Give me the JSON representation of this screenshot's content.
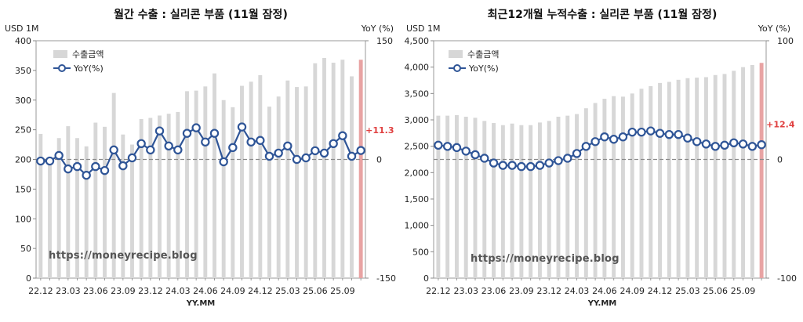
{
  "charts": [
    {
      "title": "월간 수출 : 실리콘 부품 (11월 잠정)",
      "unit_left": "USD 1M",
      "unit_right": "YoY (%)",
      "watermark": "https://moneyrecipe.blog",
      "xlabel": "YY.MM",
      "legend": [
        "수출금액",
        "YoY(%)"
      ],
      "last_label": "+11.3"
    },
    {
      "title": "최근12개월 누적수출 : 실리콘 부품 (11월 잠정)",
      "unit_left": "USD 1M",
      "unit_right": "YoY (%)",
      "watermark": "https://moneyrecipe.blog",
      "xlabel": "YY.MM",
      "legend": [
        "수출금액",
        "YoY(%)"
      ],
      "last_label": "+12.4"
    }
  ],
  "chart_data": [
    {
      "type": "bar",
      "title": "월간 수출 : 실리콘 부품 (11월 잠정)",
      "xlabel": "YY.MM",
      "ylabel": "USD 1M",
      "y2label": "YoY (%)",
      "ylim": [
        0,
        400
      ],
      "yticks": [
        0,
        50,
        100,
        150,
        200,
        250,
        300,
        350,
        400
      ],
      "y2lim": [
        -150,
        150
      ],
      "y2ticks": [
        -150,
        0,
        150
      ],
      "xtick_labels": [
        "22.12",
        "23.03",
        "23.06",
        "23.09",
        "23.12",
        "24.03",
        "24.06",
        "24.09",
        "24.12",
        "25.03",
        "25.06",
        "25.09"
      ],
      "categories": [
        "22.12",
        "23.01",
        "23.02",
        "23.03",
        "23.04",
        "23.05",
        "23.06",
        "23.07",
        "23.08",
        "23.09",
        "23.10",
        "23.11",
        "23.12",
        "24.01",
        "24.02",
        "24.03",
        "24.04",
        "24.05",
        "24.06",
        "24.07",
        "24.08",
        "24.09",
        "24.10",
        "24.11",
        "24.12",
        "25.01",
        "25.02",
        "25.03",
        "25.04",
        "25.05",
        "25.06",
        "25.07",
        "25.08",
        "25.09",
        "25.10",
        "25.11"
      ],
      "series": [
        {
          "name": "수출금액",
          "type": "bar",
          "values": [
            243,
            200,
            236,
            256,
            236,
            222,
            262,
            255,
            312,
            242,
            225,
            268,
            270,
            274,
            277,
            280,
            315,
            316,
            323,
            345,
            300,
            288,
            324,
            331,
            342,
            289,
            306,
            333,
            322,
            323,
            362,
            371,
            363,
            368,
            340,
            368
          ]
        },
        {
          "name": "YoY(%)",
          "type": "line",
          "axis": "right",
          "values": [
            -2,
            -2,
            5,
            -12,
            -9,
            -20,
            -9,
            -14,
            12,
            -8,
            2,
            20,
            12,
            36,
            17,
            12,
            33,
            40,
            22,
            33,
            -3,
            15,
            41,
            22,
            24,
            4,
            8,
            17,
            0,
            2,
            11,
            8,
            20,
            30,
            4,
            11.3
          ]
        }
      ]
    },
    {
      "type": "bar",
      "title": "최근12개월 누적수출 : 실리콘 부품 (11월 잠정)",
      "xlabel": "YY.MM",
      "ylabel": "USD 1M",
      "y2label": "YoY (%)",
      "ylim": [
        0,
        4500
      ],
      "yticks": [
        0,
        500,
        1000,
        1500,
        2000,
        2500,
        3000,
        3500,
        4000,
        4500
      ],
      "y2lim": [
        -100,
        100
      ],
      "y2ticks": [
        -100,
        0,
        100
      ],
      "xtick_labels": [
        "22.12",
        "23.03",
        "23.06",
        "23.09",
        "23.12",
        "24.03",
        "24.06",
        "24.09",
        "24.12",
        "25.03",
        "25.06",
        "25.09"
      ],
      "categories": [
        "22.12",
        "23.01",
        "23.02",
        "23.03",
        "23.04",
        "23.05",
        "23.06",
        "23.07",
        "23.08",
        "23.09",
        "23.10",
        "23.11",
        "23.12",
        "24.01",
        "24.02",
        "24.03",
        "24.04",
        "24.05",
        "24.06",
        "24.07",
        "24.08",
        "24.09",
        "24.10",
        "24.11",
        "24.12",
        "25.01",
        "25.02",
        "25.03",
        "25.04",
        "25.05",
        "25.06",
        "25.07",
        "25.08",
        "25.09",
        "25.10",
        "25.11"
      ],
      "series": [
        {
          "name": "수출금액",
          "type": "bar",
          "values": [
            3080,
            3080,
            3090,
            3060,
            3040,
            2980,
            2940,
            2900,
            2930,
            2900,
            2900,
            2950,
            2980,
            3060,
            3080,
            3110,
            3220,
            3320,
            3400,
            3450,
            3440,
            3500,
            3590,
            3640,
            3700,
            3720,
            3760,
            3790,
            3800,
            3810,
            3850,
            3870,
            3930,
            4000,
            4040,
            4080
          ]
        },
        {
          "name": "YoY(%)",
          "type": "line",
          "axis": "right",
          "values": [
            12,
            11,
            10,
            7,
            4,
            1,
            -3,
            -5,
            -5,
            -6,
            -6,
            -5,
            -3,
            -1,
            1,
            5,
            11,
            15,
            19,
            17,
            19,
            23,
            23,
            24,
            22,
            21,
            21,
            18,
            15,
            13,
            11,
            12,
            14,
            13,
            11,
            12.4
          ]
        }
      ]
    }
  ]
}
